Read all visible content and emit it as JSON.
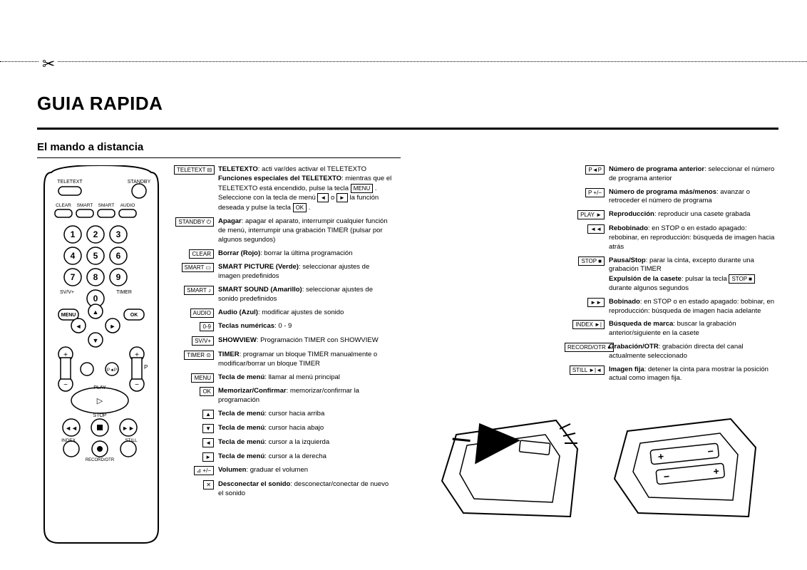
{
  "title": "GUIA RAPIDA",
  "subtitle": "El mando a distancia",
  "remote": {
    "labels": {
      "teletext": "TELETEXT",
      "standby": "STANDBY",
      "clear": "CLEAR",
      "smart": "SMART",
      "smart2": "SMART",
      "audio": "AUDIO",
      "svv": "SV/V+",
      "timer": "TIMER",
      "menu": "MENU",
      "ok": "OK",
      "play": "PLAY",
      "stop": "STOP",
      "index": "INDEX",
      "still": "STILL",
      "record": "RECORD/OTR",
      "p": "P",
      "pp": "P◄P"
    }
  },
  "left_definitions": [
    {
      "key": "TELETEXT ⊟",
      "bold": "TELETEXTO",
      "text": ": acti var/des activar el TELETEXTO",
      "extra": "<b>Funciones especiales del TELETEXTO</b>: mientras que el TELETEXTO está encendido, pulse la tecla <span class='inline-key'>MENU</span> . Seleccione con la tecla de menú <span class='inline-key'>◄</span> o <span class='inline-key'>►</span> la función deseada y pulse la tecla <span class='inline-key'>OK</span> ."
    },
    {
      "key": "STANDBY ⏻",
      "bold": "Apagar",
      "text": ": apagar el aparato, interrumpir cualquier función de menú, interrumpir una grabación TIMER (pulsar por algunos segundos)"
    },
    {
      "key": "CLEAR",
      "bold": "Borrar (Rojo)",
      "text": ": borrar la última programación"
    },
    {
      "key": "SMART ▭",
      "bold": "SMART PICTURE (Verde)",
      "text": ": seleccionar ajustes de imagen predefinidos"
    },
    {
      "key": "SMART ♪",
      "bold": "SMART SOUND (Amarillo)",
      "text": ": seleccionar ajustes de sonido predefinidos"
    },
    {
      "key": "AUDIO",
      "bold": "Audio (Azul)",
      "text": ": modificar ajustes de sonido"
    },
    {
      "key": "0-9",
      "bold": "Teclas numéricas",
      "text": ": 0 - 9"
    },
    {
      "key": "SV/V+",
      "bold": "SHOWVIEW",
      "text": ": Programación TIMER con SHOWVIEW"
    },
    {
      "key": "TIMER ⊙",
      "bold": "TIMER",
      "text": ": programar un bloque TIMER manualmente o modificar/borrar un bloque TIMER"
    },
    {
      "key": "MENU",
      "bold": "Tecla de menú",
      "text": ": llamar al menú principal"
    },
    {
      "key": "OK",
      "bold": "Memorizar/Confirmar",
      "text": ": memorizar/confirmar la programación"
    },
    {
      "key": "▲",
      "bold": "Tecla de menú",
      "text": ": cursor hacia arriba"
    },
    {
      "key": "▼",
      "bold": "Tecla de menú",
      "text": ": cursor hacia abajo"
    },
    {
      "key": "◄",
      "bold": "Tecla de menú",
      "text": ": cursor a la izquierda"
    },
    {
      "key": "►",
      "bold": "Tecla de menú",
      "text": ": cursor a la derecha"
    },
    {
      "key": "⊿ +/−",
      "bold": "Volumen",
      "text": ": graduar el volumen"
    },
    {
      "key": "✕",
      "bold": "Desconectar el sonido",
      "text": ": desconectar/conectar de nuevo el sonido"
    }
  ],
  "right_definitions": [
    {
      "key": "P◄P",
      "bold": "Número de programa anterior",
      "text": ": seleccionar el número de programa anterior"
    },
    {
      "key": "P +/−",
      "bold": "Número de programa más/menos",
      "text": ": avanzar o retroceder el número de programa"
    },
    {
      "key": "PLAY ►",
      "bold": "Reproducción",
      "text": ": reproducir una casete grabada"
    },
    {
      "key": "◄◄",
      "bold": "Rebobinado",
      "text": ": en STOP o en estado apagado: rebobinar, en reproducción: búsqueda de imagen hacia atrás"
    },
    {
      "key": "STOP ■",
      "bold": "Pausa/Stop",
      "text": ": parar la cinta, excepto durante una grabación TIMER",
      "extra": "<b>Expulsión de la casete</b>: pulsar la tecla <span class='inline-key'>STOP ■</span> durante algunos segundos"
    },
    {
      "key": "►►",
      "bold": "Bobinado",
      "text": ": en STOP o en estado apagado: bobinar, en reproducción: búsqueda de imagen hacia adelante"
    },
    {
      "key": "INDEX ►|",
      "bold": "Búsqueda de marca",
      "text": ": buscar la grabación anterior/siguiente en la casete"
    },
    {
      "key": "RECORD/OTR ●",
      "bold": "Grabación/OTR",
      "text": ": grabación directa del canal actualmente seleccionado"
    },
    {
      "key": "STILL ►|◄",
      "bold": "Imagen fija",
      "text": ": detener la cinta para mostrar la posición actual como imagen fija."
    }
  ]
}
